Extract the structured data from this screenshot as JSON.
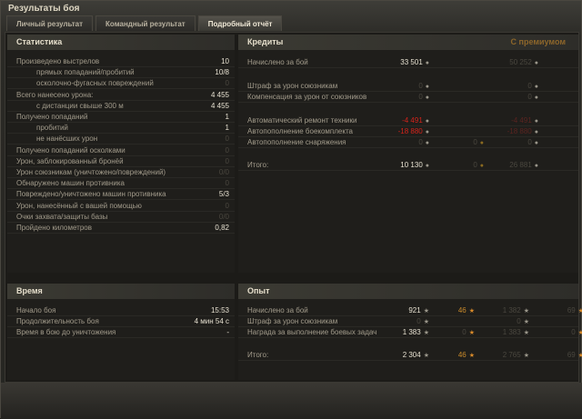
{
  "window": {
    "title": "Результаты боя"
  },
  "tabs": [
    {
      "label": "Личный результат"
    },
    {
      "label": "Командный результат"
    },
    {
      "label": "Подробный отчёт",
      "active": true
    }
  ],
  "stats": {
    "header": "Статистика",
    "rows": [
      {
        "label": "Произведено выстрелов",
        "value": "10",
        "indent": false,
        "dim": false
      },
      {
        "label": "прямых попаданий/пробитий",
        "value": "10/8",
        "indent": true,
        "dim": false
      },
      {
        "label": "осколочно-фугасных повреждений",
        "value": "0",
        "indent": true,
        "dim": true
      },
      {
        "label": "Всего нанесено урона:",
        "value": "4 455",
        "indent": false,
        "dim": false
      },
      {
        "label": "с дистанции свыше 300 м",
        "value": "4 455",
        "indent": true,
        "dim": false
      },
      {
        "label": "Получено попаданий",
        "value": "1",
        "indent": false,
        "dim": false
      },
      {
        "label": "пробитий",
        "value": "1",
        "indent": true,
        "dim": false
      },
      {
        "label": "не нанёсших урон",
        "value": "0",
        "indent": true,
        "dim": true
      },
      {
        "label": "Получено попаданий осколками",
        "value": "0",
        "indent": false,
        "dim": true
      },
      {
        "label": "Урон, заблокированный бронёй",
        "value": "0",
        "indent": false,
        "dim": true
      },
      {
        "label": "Урон союзникам (уничтожено/повреждений)",
        "value": "0/0",
        "indent": false,
        "dim": true
      },
      {
        "label": "Обнаружено машин противника",
        "value": "0",
        "indent": false,
        "dim": true
      },
      {
        "label": "Повреждено/уничтожено машин противника",
        "value": "5/3",
        "indent": false,
        "dim": false
      },
      {
        "label": "Урон, нанесённый с вашей помощью",
        "value": "0",
        "indent": false,
        "dim": true
      },
      {
        "label": "Очки захвата/защиты базы",
        "value": "0/0",
        "indent": false,
        "dim": true
      },
      {
        "label": "Пройдено километров",
        "value": "0,82",
        "indent": false,
        "dim": false
      }
    ]
  },
  "credits": {
    "header": "Кредиты",
    "premium_label": "С премиумом",
    "rows": [
      {
        "label": "Начислено за бой",
        "c1": "33 501",
        "c2": "",
        "c3": "50 252",
        "c4": ""
      },
      {
        "label": "Штраф за урон союзникам",
        "c1": "0",
        "c2": "",
        "c3": "0",
        "c4": ""
      },
      {
        "label": "Компенсация за урон от союзников",
        "c1": "0",
        "c2": "",
        "c3": "0",
        "c4": ""
      },
      {
        "label": "Автоматический ремонт техники",
        "c1": "-4 491",
        "c2": "",
        "c3": "-4 491",
        "c4": "",
        "red": true
      },
      {
        "label": "Автопополнение боекомплекта",
        "c1": "-18 880",
        "c2": "",
        "c3": "-18 880",
        "c4": "",
        "red": true
      },
      {
        "label": "Автопополнение снаряжения",
        "c1": "0",
        "c2": "0",
        "c3": "0",
        "c4": "0"
      },
      {
        "label": "Итого:",
        "c1": "10 130",
        "c2": "0",
        "c3": "26 881",
        "c4": "0"
      }
    ]
  },
  "time": {
    "header": "Время",
    "rows": [
      {
        "label": "Начало боя",
        "value": "15:53"
      },
      {
        "label": "Продолжительность боя",
        "value": "4 мин 54 с"
      },
      {
        "label": "Время в бою до уничтожения",
        "value": "-"
      }
    ]
  },
  "xp": {
    "header": "Опыт",
    "rows": [
      {
        "label": "Начислено за бой",
        "c1": "921",
        "c2": "46",
        "c3": "1 382",
        "c4": "69"
      },
      {
        "label": "Штраф за урон союзникам",
        "c1": "0",
        "c2": "",
        "c3": "0",
        "c4": ""
      },
      {
        "label": "Награда за выполнение боевых задач",
        "c1": "1 383",
        "c2": "0",
        "c3": "1 383",
        "c4": "0"
      },
      {
        "label": "Итого:",
        "c1": "2 304",
        "c2": "46",
        "c3": "2 765",
        "c4": "69"
      }
    ]
  },
  "colors": {
    "accent": "#c98a2b",
    "negative": "#d3231b",
    "text": "#a39c8c"
  },
  "icons": {
    "credits": "coin-icon",
    "gold": "gold-coin-icon",
    "xp": "star-icon",
    "free_xp": "orange-star-icon"
  }
}
